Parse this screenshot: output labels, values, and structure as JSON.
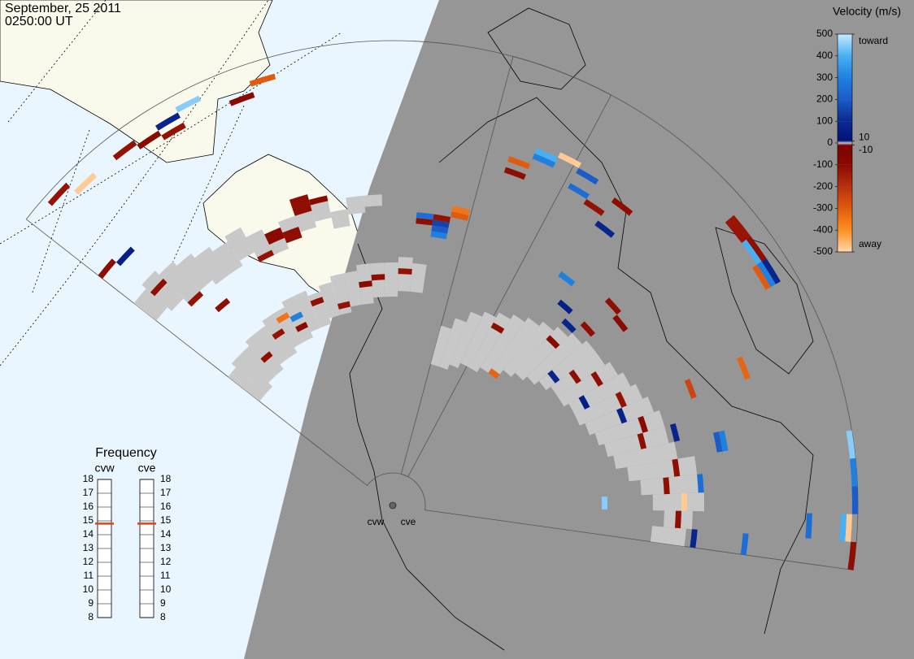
{
  "header": {
    "date": "September, 25 2011",
    "time": "0250:00 UT"
  },
  "velocity_scale": {
    "title": "Velocity (m/s)",
    "lim": [
      -500,
      500
    ],
    "colorscale": [
      [
        500,
        "#c8e8ff"
      ],
      [
        400,
        "#48b0f2"
      ],
      [
        300,
        "#2080e0"
      ],
      [
        200,
        "#1a5cc8"
      ],
      [
        100,
        "#0b2a90"
      ],
      [
        10,
        "#00127a"
      ],
      [
        0,
        "#c8c8c8"
      ],
      [
        -10,
        "#7a0000"
      ],
      [
        -100,
        "#8a0a00"
      ],
      [
        -200,
        "#b83010"
      ],
      [
        -300,
        "#e05a10"
      ],
      [
        -400,
        "#ff9020"
      ],
      [
        -500,
        "#ffd8b0"
      ]
    ],
    "ticks": [
      500,
      400,
      300,
      200,
      100,
      0,
      -100,
      -200,
      -300,
      -400,
      -500
    ],
    "side_ticks": [
      {
        "value": 500,
        "label": "toward"
      },
      10,
      -10,
      {
        "value": -500,
        "label": "away"
      }
    ]
  },
  "frequency": {
    "title": "Frequency",
    "lim": [
      8,
      18
    ],
    "ticks": [
      8,
      9,
      10,
      11,
      12,
      13,
      14,
      15,
      16,
      17,
      18
    ],
    "marker_color": "#e0401a"
  },
  "radars": [
    {
      "name": "cvw",
      "frequency": 14.8
    },
    {
      "name": "cve",
      "frequency": 14.8
    }
  ],
  "cells": [
    {
      "radar": "cvw",
      "beam": 0,
      "gates": [
        24,
        30
      ],
      "velocity": 0
    },
    {
      "radar": "cvw",
      "beam": 1,
      "gates": [
        24,
        31
      ],
      "velocity": 0
    },
    {
      "radar": "cvw",
      "beam": 2,
      "gates": [
        25,
        31
      ],
      "velocity": 0
    },
    {
      "radar": "cvw",
      "beam": 3,
      "gates": [
        25,
        32
      ],
      "velocity": 0
    },
    {
      "radar": "cvw",
      "beam": 4,
      "gates": [
        26,
        32
      ],
      "velocity": 0
    },
    {
      "radar": "cvw",
      "beam": 5,
      "gates": [
        26,
        33
      ],
      "velocity": 0
    },
    {
      "radar": "cvw",
      "beam": 6,
      "gates": [
        27,
        33
      ],
      "velocity": 0
    },
    {
      "radar": "cvw",
      "beam": 7,
      "gates": [
        27,
        34
      ],
      "velocity": 0
    },
    {
      "radar": "cvw",
      "beam": 8,
      "gates": [
        28,
        34
      ],
      "velocity": 0
    },
    {
      "radar": "cvw",
      "beam": 9,
      "gates": [
        28,
        33
      ],
      "velocity": 0
    },
    {
      "radar": "cvw",
      "beam": 10,
      "gates": [
        29,
        34
      ],
      "velocity": 0
    },
    {
      "radar": "cvw",
      "beam": 11,
      "gates": [
        29,
        35
      ],
      "velocity": 0
    },
    {
      "radar": "cvw",
      "beam": 12,
      "gates": [
        30,
        35
      ],
      "velocity": 0
    },
    {
      "radar": "cvw",
      "beam": 13,
      "gates": [
        30,
        36
      ],
      "velocity": 0
    },
    {
      "radar": "cvw",
      "beam": 14,
      "gates": [
        31,
        36
      ],
      "velocity": 0
    },
    {
      "radar": "cvw",
      "beam": 15,
      "gates": [
        31,
        36
      ],
      "velocity": 0
    },
    {
      "radar": "cvw",
      "beam": 16,
      "gates": [
        32,
        37
      ],
      "velocity": 0
    },
    {
      "radar": "cvw",
      "beam": 17,
      "gates": [
        32,
        36
      ],
      "velocity": 0
    },
    {
      "radar": "cvw",
      "beam": 0,
      "gates": [
        47,
        51
      ],
      "velocity": 0
    },
    {
      "radar": "cvw",
      "beam": 1,
      "gates": [
        46,
        52
      ],
      "velocity": 0
    },
    {
      "radar": "cvw",
      "beam": 2,
      "gates": [
        45,
        51
      ],
      "velocity": 0
    },
    {
      "radar": "cvw",
      "beam": 3,
      "gates": [
        45,
        50
      ],
      "velocity": 0
    },
    {
      "radar": "cvw",
      "beam": 4,
      "gates": [
        44,
        49
      ],
      "velocity": 0
    },
    {
      "radar": "cvw",
      "beam": 5,
      "gates": [
        44,
        48
      ],
      "velocity": 0
    },
    {
      "radar": "cvw",
      "beam": 6,
      "gates": [
        45,
        49
      ],
      "velocity": 0
    },
    {
      "radar": "cvw",
      "beam": 7,
      "gates": [
        44,
        47
      ],
      "velocity": 0
    },
    {
      "radar": "cvw",
      "beam": 8,
      "gates": [
        43,
        46
      ],
      "velocity": 0
    },
    {
      "radar": "cvw",
      "beam": 9,
      "gates": [
        44,
        47
      ],
      "velocity": 0
    },
    {
      "radar": "cvw",
      "beam": 10,
      "gates": [
        45,
        48
      ],
      "velocity": 0
    },
    {
      "radar": "cvw",
      "beam": 11,
      "gates": [
        46,
        48
      ],
      "velocity": 0
    },
    {
      "radar": "cvw",
      "beam": 12,
      "gates": [
        44,
        46
      ],
      "velocity": 0
    },
    {
      "radar": "cvw",
      "beam": 13,
      "gates": [
        46,
        48
      ],
      "velocity": 0
    },
    {
      "radar": "cvw",
      "beam": 14,
      "gates": [
        47,
        48
      ],
      "velocity": 0
    },
    {
      "radar": "cve",
      "beam": 0,
      "gates": [
        20,
        26
      ],
      "velocity": 0
    },
    {
      "radar": "cve",
      "beam": 1,
      "gates": [
        20,
        28
      ],
      "velocity": 0
    },
    {
      "radar": "cve",
      "beam": 2,
      "gates": [
        21,
        30
      ],
      "velocity": 0
    },
    {
      "radar": "cve",
      "beam": 3,
      "gates": [
        22,
        31
      ],
      "velocity": 0
    },
    {
      "radar": "cve",
      "beam": 4,
      "gates": [
        22,
        32
      ],
      "velocity": 0
    },
    {
      "radar": "cve",
      "beam": 5,
      "gates": [
        23,
        33
      ],
      "velocity": 0
    },
    {
      "radar": "cve",
      "beam": 6,
      "gates": [
        24,
        34
      ],
      "velocity": 0
    },
    {
      "radar": "cve",
      "beam": 7,
      "gates": [
        25,
        35
      ],
      "velocity": 0
    },
    {
      "radar": "cve",
      "beam": 8,
      "gates": [
        26,
        36
      ],
      "velocity": 0
    },
    {
      "radar": "cve",
      "beam": 9,
      "gates": [
        27,
        37
      ],
      "velocity": 0
    },
    {
      "radar": "cve",
      "beam": 10,
      "gates": [
        28,
        38
      ],
      "velocity": 0
    },
    {
      "radar": "cve",
      "beam": 11,
      "gates": [
        29,
        38
      ],
      "velocity": 0
    },
    {
      "radar": "cve",
      "beam": 12,
      "gates": [
        29,
        39
      ],
      "velocity": 0
    },
    {
      "radar": "cve",
      "beam": 13,
      "gates": [
        30,
        40
      ],
      "velocity": 0
    },
    {
      "radar": "cve",
      "beam": 14,
      "gates": [
        30,
        41
      ],
      "velocity": 0
    },
    {
      "radar": "cve",
      "beam": 15,
      "gates": [
        31,
        42
      ],
      "velocity": 0
    },
    {
      "radar": "cve",
      "beam": 16,
      "gates": [
        32,
        43
      ],
      "velocity": 0
    },
    {
      "radar": "cve",
      "beam": 17,
      "gates": [
        33,
        43
      ],
      "velocity": 0
    },
    {
      "radar": "cve",
      "beam": 18,
      "gates": [
        34,
        44
      ],
      "velocity": 0
    },
    {
      "radar": "cve",
      "beam": 19,
      "gates": [
        36,
        47
      ],
      "velocity": 0
    },
    {
      "radar": "cve",
      "beam": 20,
      "gates": [
        38,
        48
      ],
      "velocity": 0
    },
    {
      "radar": "cve",
      "beam": 21,
      "gates": [
        40,
        48
      ],
      "velocity": 0
    },
    {
      "radar": "cve",
      "beam": 22,
      "gates": [
        42,
        46
      ],
      "velocity": 0
    },
    {
      "radar": "cve",
      "beam": 23,
      "gates": [
        40,
        45
      ],
      "velocity": 0
    },
    {
      "radar": "cvw",
      "beam": 4,
      "gates": [
        72,
        72
      ],
      "velocity": -120
    },
    {
      "radar": "cvw",
      "beam": 5,
      "gates": [
        71,
        71
      ],
      "velocity": -100
    },
    {
      "radar": "cvw",
      "beam": 6,
      "gates": [
        70,
        70
      ],
      "velocity": -120
    },
    {
      "radar": "cvw",
      "beam": 6,
      "gates": [
        72,
        72
      ],
      "velocity": 80
    },
    {
      "radar": "cvw",
      "beam": 7,
      "gates": [
        73,
        73
      ],
      "velocity": 450
    },
    {
      "radar": "cvw",
      "beam": 9,
      "gates": [
        70,
        70
      ],
      "velocity": -100
    },
    {
      "radar": "cvw",
      "beam": 10,
      "gates": [
        72,
        72
      ],
      "velocity": -300
    },
    {
      "radar": "cvw",
      "beam": 1,
      "gates": [
        74,
        74
      ],
      "velocity": -120
    },
    {
      "radar": "cvw",
      "beam": 2,
      "gates": [
        72,
        72
      ],
      "velocity": -480
    },
    {
      "radar": "cvw",
      "beam": 0,
      "gates": [
        59,
        59
      ],
      "velocity": -110
    },
    {
      "radar": "cvw",
      "beam": 1,
      "gates": [
        58,
        58
      ],
      "velocity": 60
    },
    {
      "radar": "cvw",
      "beam": 1,
      "gates": [
        50,
        50
      ],
      "velocity": -110
    },
    {
      "radar": "cvw",
      "beam": 2,
      "gates": [
        44,
        44
      ],
      "velocity": -120
    },
    {
      "radar": "cvw",
      "beam": 3,
      "gates": [
        40,
        40
      ],
      "velocity": -110
    },
    {
      "radar": "cvw",
      "beam": 8,
      "gates": [
        45,
        46
      ],
      "velocity": -100
    },
    {
      "radar": "cvw",
      "beam": 9,
      "gates": [
        44,
        45
      ],
      "velocity": -110
    },
    {
      "radar": "cvw",
      "beam": 7,
      "gates": [
        43,
        43
      ],
      "velocity": -120
    },
    {
      "radar": "cvw",
      "beam": 10,
      "gates": [
        48,
        50
      ],
      "velocity": -110
    },
    {
      "radar": "cvw",
      "beam": 11,
      "gates": [
        49,
        49
      ],
      "velocity": -100
    },
    {
      "radar": "cvw",
      "beam": 18,
      "gates": [
        42,
        42
      ],
      "velocity": 300
    },
    {
      "radar": "cvw",
      "beam": 18,
      "gates": [
        43,
        43
      ],
      "velocity": 200
    },
    {
      "radar": "cvw",
      "beam": 18,
      "gates": [
        44,
        44
      ],
      "velocity": 150
    },
    {
      "radar": "cvw",
      "beam": 18,
      "gates": [
        45,
        45
      ],
      "velocity": -120
    },
    {
      "radar": "cvw",
      "beam": 19,
      "gates": [
        46,
        46
      ],
      "velocity": -300
    },
    {
      "radar": "cvw",
      "beam": 19,
      "gates": [
        47,
        47
      ],
      "velocity": -350
    },
    {
      "radar": "cvw",
      "beam": 17,
      "gates": [
        44,
        44
      ],
      "velocity": -110
    },
    {
      "radar": "cvw",
      "beam": 17,
      "gates": [
        45,
        45
      ],
      "velocity": 250
    },
    {
      "radar": "cvw",
      "beam": 3,
      "gates": [
        28,
        28
      ],
      "velocity": -110
    },
    {
      "radar": "cvw",
      "beam": 5,
      "gates": [
        30,
        30
      ],
      "velocity": -120
    },
    {
      "radar": "cvw",
      "beam": 7,
      "gates": [
        29,
        29
      ],
      "velocity": -100
    },
    {
      "radar": "cvw",
      "beam": 9,
      "gates": [
        32,
        32
      ],
      "velocity": -110
    },
    {
      "radar": "cvw",
      "beam": 11,
      "gates": [
        30,
        30
      ],
      "velocity": -120
    },
    {
      "radar": "cvw",
      "beam": 13,
      "gates": [
        33,
        33
      ],
      "velocity": -100
    },
    {
      "radar": "cvw",
      "beam": 14,
      "gates": [
        34,
        34
      ],
      "velocity": -110
    },
    {
      "radar": "cvw",
      "beam": 16,
      "gates": [
        35,
        35
      ],
      "velocity": -120
    },
    {
      "radar": "cvw",
      "beam": 6,
      "gates": [
        32,
        32
      ],
      "velocity": -350
    },
    {
      "radar": "cvw",
      "beam": 7,
      "gates": [
        31,
        31
      ],
      "velocity": 300
    },
    {
      "radar": "cve",
      "beam": 2,
      "gates": [
        61,
        61
      ],
      "velocity": 400
    },
    {
      "radar": "cve",
      "beam": 2,
      "gates": [
        60,
        60
      ],
      "velocity": 300
    },
    {
      "radar": "cve",
      "beam": 3,
      "gates": [
        62,
        62
      ],
      "velocity": -480
    },
    {
      "radar": "cve",
      "beam": 4,
      "gates": [
        61,
        61
      ],
      "velocity": 200
    },
    {
      "radar": "cve",
      "beam": 4,
      "gates": [
        58,
        58
      ],
      "velocity": 250
    },
    {
      "radar": "cve",
      "beam": 5,
      "gates": [
        57,
        57
      ],
      "velocity": -120
    },
    {
      "radar": "cve",
      "beam": 6,
      "gates": [
        60,
        60
      ],
      "velocity": -110
    },
    {
      "radar": "cve",
      "beam": 6,
      "gates": [
        55,
        55
      ],
      "velocity": 80
    },
    {
      "radar": "cve",
      "beam": 1,
      "gates": [
        58,
        58
      ],
      "velocity": -300
    },
    {
      "radar": "cve",
      "beam": 1,
      "gates": [
        56,
        56
      ],
      "velocity": -110
    },
    {
      "radar": "cve",
      "beam": 10,
      "gates": [
        71,
        72
      ],
      "velocity": -130
    },
    {
      "radar": "cve",
      "beam": 11,
      "gates": [
        72,
        72
      ],
      "velocity": -110
    },
    {
      "radar": "cve",
      "beam": 11,
      "gates": [
        71,
        71
      ],
      "velocity": 400
    },
    {
      "radar": "cve",
      "beam": 12,
      "gates": [
        72,
        72
      ],
      "velocity": 80
    },
    {
      "radar": "cve",
      "beam": 12,
      "gates": [
        70,
        70
      ],
      "velocity": -300
    },
    {
      "radar": "cve",
      "beam": 12,
      "gates": [
        71,
        71
      ],
      "velocity": 300
    },
    {
      "radar": "cve",
      "beam": 15,
      "gates": [
        60,
        60
      ],
      "velocity": -320
    },
    {
      "radar": "cve",
      "beam": 15,
      "gates": [
        50,
        50
      ],
      "velocity": -250
    },
    {
      "radar": "cve",
      "beam": 19,
      "gates": [
        75,
        75
      ],
      "velocity": 450
    },
    {
      "radar": "cve",
      "beam": 20,
      "gates": [
        75,
        75
      ],
      "velocity": 300
    },
    {
      "radar": "cve",
      "beam": 21,
      "gates": [
        75,
        75
      ],
      "velocity": 200
    },
    {
      "radar": "cve",
      "beam": 22,
      "gates": [
        74,
        74
      ],
      "velocity": -480
    },
    {
      "radar": "cve",
      "beam": 22,
      "gates": [
        73,
        73
      ],
      "velocity": 400
    },
    {
      "radar": "cve",
      "beam": 23,
      "gates": [
        75,
        75
      ],
      "velocity": -110
    },
    {
      "radar": "cve",
      "beam": 22,
      "gates": [
        67,
        67
      ],
      "velocity": 250
    },
    {
      "radar": "cve",
      "beam": 23,
      "gates": [
        56,
        56
      ],
      "velocity": 250
    },
    {
      "radar": "cve",
      "beam": 23,
      "gates": [
        47,
        47
      ],
      "velocity": 80
    },
    {
      "radar": "cve",
      "beam": 21,
      "gates": [
        31,
        31
      ],
      "velocity": 450
    },
    {
      "radar": "cve",
      "beam": 8,
      "gates": [
        38,
        38
      ],
      "velocity": 80
    },
    {
      "radar": "cve",
      "beam": 9,
      "gates": [
        40,
        40
      ],
      "velocity": -110
    },
    {
      "radar": "cve",
      "beam": 9,
      "gates": [
        46,
        46
      ],
      "velocity": -110
    },
    {
      "radar": "cve",
      "beam": 10,
      "gates": [
        45,
        45
      ],
      "velocity": -100
    },
    {
      "radar": "cve",
      "beam": 7,
      "gates": [
        40,
        40
      ],
      "velocity": 60
    },
    {
      "radar": "cve",
      "beam": 17,
      "gates": [
        45,
        45
      ],
      "velocity": 80
    },
    {
      "radar": "cve",
      "beam": 18,
      "gates": [
        53,
        53
      ],
      "velocity": 300
    },
    {
      "radar": "cve",
      "beam": 18,
      "gates": [
        52,
        52
      ],
      "velocity": 200
    },
    {
      "radar": "cve",
      "beam": 6,
      "gates": [
        44,
        44
      ],
      "velocity": 300
    },
    {
      "radar": "cve",
      "beam": 6,
      "gates": [
        23,
        23
      ],
      "velocity": -320
    },
    {
      "radar": "cve",
      "beam": 20,
      "gates": [
        48,
        48
      ],
      "velocity": 250
    },
    {
      "radar": "cve",
      "beam": 4,
      "gates": [
        30,
        30
      ],
      "velocity": -110
    },
    {
      "radar": "cve",
      "beam": 8,
      "gates": [
        34,
        34
      ],
      "velocity": -100
    },
    {
      "radar": "cve",
      "beam": 12,
      "gates": [
        36,
        36
      ],
      "velocity": -110
    },
    {
      "radar": "cve",
      "beam": 14,
      "gates": [
        38,
        38
      ],
      "velocity": -120
    },
    {
      "radar": "cve",
      "beam": 16,
      "gates": [
        40,
        40
      ],
      "velocity": -100
    },
    {
      "radar": "cve",
      "beam": 19,
      "gates": [
        44,
        44
      ],
      "velocity": -110
    },
    {
      "radar": "cve",
      "beam": 20,
      "gates": [
        42,
        42
      ],
      "velocity": -110
    },
    {
      "radar": "cve",
      "beam": 21,
      "gates": [
        45,
        45
      ],
      "velocity": -480
    },
    {
      "radar": "cve",
      "beam": 22,
      "gates": [
        44,
        44
      ],
      "velocity": -110
    },
    {
      "radar": "cve",
      "beam": 13,
      "gates": [
        32,
        32
      ],
      "velocity": 60
    },
    {
      "radar": "cve",
      "beam": 10,
      "gates": [
        30,
        30
      ],
      "velocity": 80
    },
    {
      "radar": "cve",
      "beam": 11,
      "gates": [
        33,
        33
      ],
      "velocity": -110
    },
    {
      "radar": "cve",
      "beam": 15,
      "gates": [
        37,
        37
      ],
      "velocity": 70
    },
    {
      "radar": "cve",
      "beam": 17,
      "gates": [
        39,
        39
      ],
      "velocity": -110
    }
  ]
}
